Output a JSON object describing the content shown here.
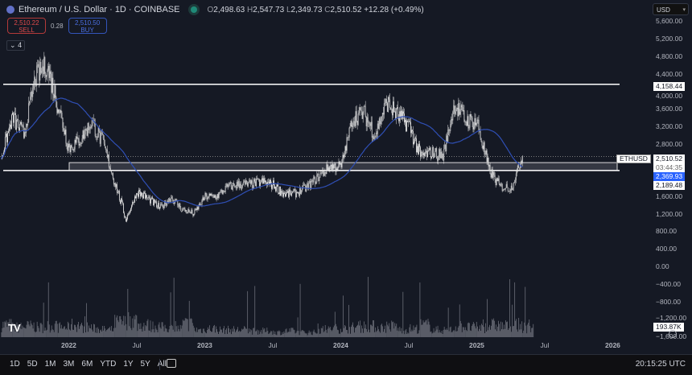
{
  "header": {
    "symbol_title": "Ethereum / U.S. Dollar · 1D · COINBASE",
    "ohlc": {
      "o_label": "O",
      "o": "2,498.63",
      "h_label": "H",
      "h": "2,547.73",
      "l_label": "L",
      "l": "2,349.73",
      "c_label": "C",
      "c": "2,510.52",
      "change": "+12.28 (+0.49%)"
    },
    "sell": {
      "price": "2,510.22",
      "label": "SELL"
    },
    "spread": "0.28",
    "buy": {
      "price": "2,510.50",
      "label": "BUY"
    },
    "collapse_count": "4",
    "currency": "USD"
  },
  "price_tags": {
    "resistance": "4,158.44",
    "symbol": "ETHUSD",
    "last": "2,510.52",
    "countdown": "03:44:35",
    "ma": "2,369.93",
    "support": "2,189.48",
    "volume": "193.87K"
  },
  "colors": {
    "background": "#151924",
    "candles": "#e6e6e6",
    "ma": "#2f4fb5",
    "ma_tag": "#2962ff",
    "sell": "#e04b4b",
    "buy": "#4a6ee0"
  },
  "bottom_bar": {
    "ranges": [
      "1D",
      "5D",
      "1M",
      "3M",
      "6M",
      "YTD",
      "1Y",
      "5Y",
      "All"
    ],
    "clock": "20:15:25 UTC"
  },
  "chart_data": {
    "type": "candlestick",
    "y_ticks": [
      "5,600.00",
      "5,200.00",
      "4,800.00",
      "4,400.00",
      "4,000.00",
      "3,600.00",
      "3,200.00",
      "2,800.00",
      "1,600.00",
      "1,200.00",
      "800.00",
      "400.00",
      "0.00",
      "−400.00",
      "−800.00",
      "−1,200.00",
      "−1,600.00"
    ],
    "y_tick_values": [
      5600,
      5200,
      4800,
      4400,
      4000,
      3600,
      3200,
      2800,
      1600,
      1200,
      800,
      400,
      0,
      -400,
      -800,
      -1200,
      -1600
    ],
    "x_ticks": [
      "2022",
      "Jul",
      "2023",
      "Jul",
      "2024",
      "Jul",
      "2025",
      "Jul",
      "2026"
    ],
    "x_tick_dates": [
      "2022-01",
      "2022-07",
      "2023-01",
      "2023-07",
      "2024-01",
      "2024-07",
      "2025-01",
      "2025-07",
      "2026-01"
    ],
    "months": [
      "2021-07",
      "2021-08",
      "2021-09",
      "2021-10",
      "2021-11",
      "2021-12",
      "2022-01",
      "2022-02",
      "2022-03",
      "2022-04",
      "2022-05",
      "2022-06",
      "2022-07",
      "2022-08",
      "2022-09",
      "2022-10",
      "2022-11",
      "2022-12",
      "2023-01",
      "2023-02",
      "2023-03",
      "2023-04",
      "2023-05",
      "2023-06",
      "2023-07",
      "2023-08",
      "2023-09",
      "2023-10",
      "2023-11",
      "2023-12",
      "2024-01",
      "2024-02",
      "2024-03",
      "2024-04",
      "2024-05",
      "2024-06",
      "2024-07",
      "2024-08",
      "2024-09",
      "2024-10",
      "2024-11",
      "2024-12",
      "2025-01",
      "2025-02",
      "2025-03",
      "2025-04",
      "2025-05"
    ],
    "close": [
      2500,
      3400,
      3000,
      4300,
      4600,
      3700,
      2700,
      2900,
      3300,
      2800,
      1950,
      1070,
      1700,
      1550,
      1330,
      1570,
      1300,
      1200,
      1590,
      1600,
      1820,
      1870,
      1870,
      1930,
      1860,
      1650,
      1670,
      1810,
      2050,
      2280,
      2280,
      3380,
      3500,
      3010,
      3760,
      3430,
      3230,
      2510,
      2600,
      2520,
      3700,
      3330,
      3300,
      2230,
      1820,
      1790,
      2510
    ],
    "volume_relative": [
      0.5,
      0.4,
      0.45,
      0.4,
      0.45,
      0.4,
      0.5,
      0.4,
      0.35,
      0.3,
      0.6,
      0.7,
      0.5,
      0.45,
      0.4,
      0.35,
      0.55,
      0.3,
      0.35,
      0.3,
      0.3,
      0.3,
      0.25,
      0.25,
      0.2,
      0.25,
      0.2,
      0.2,
      0.3,
      0.35,
      0.35,
      0.4,
      0.45,
      0.4,
      0.45,
      0.3,
      0.35,
      0.5,
      0.3,
      0.3,
      0.45,
      0.4,
      0.4,
      0.5,
      0.45,
      0.5,
      0.4
    ],
    "horizontal_lines": [
      4158.44,
      2189.48
    ],
    "zone": [
      2189.48,
      2369.93
    ],
    "last_price": 2510.52,
    "ma_price": 2369.93
  }
}
